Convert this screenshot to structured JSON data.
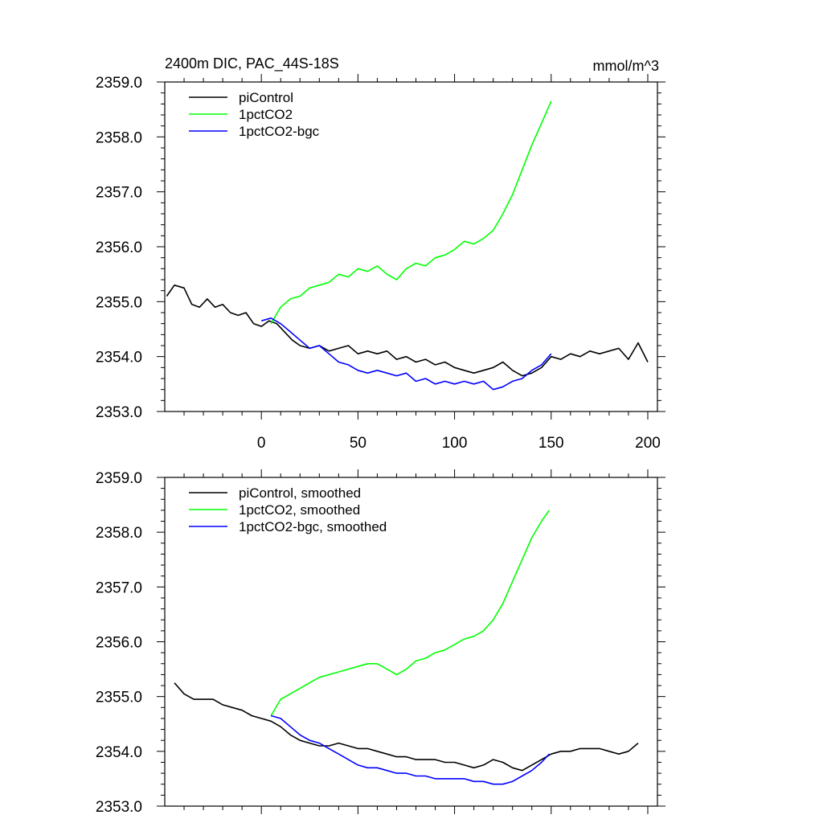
{
  "chart_data": [
    {
      "type": "line",
      "title_left": "2400m DIC, PAC_44S-18S",
      "title_right": "mmol/m^3",
      "xlabel": "",
      "ylabel": "",
      "xlim": [
        -50,
        205
      ],
      "ylim": [
        2353.0,
        2359.0
      ],
      "xticks": [
        0,
        50,
        100,
        150,
        200
      ],
      "xtick_labels": [
        "0",
        "50",
        "100",
        "150",
        "200"
      ],
      "yticks": [
        2353.0,
        2354.0,
        2355.0,
        2356.0,
        2357.0,
        2358.0,
        2359.0
      ],
      "ytick_labels": [
        "2353.0",
        "2354.0",
        "2355.0",
        "2356.0",
        "2357.0",
        "2358.0",
        "2359.0"
      ],
      "show_xtick_labels": true,
      "legend": "top-left",
      "series": [
        {
          "name": "piControl",
          "color": "#000000",
          "x": [
            -49,
            -45,
            -40,
            -36,
            -32,
            -28,
            -24,
            -20,
            -16,
            -12,
            -8,
            -4,
            0,
            4,
            8,
            12,
            16,
            20,
            25,
            30,
            35,
            40,
            45,
            50,
            55,
            60,
            65,
            70,
            75,
            80,
            85,
            90,
            95,
            100,
            105,
            110,
            115,
            120,
            125,
            130,
            135,
            140,
            145,
            150,
            155,
            160,
            165,
            170,
            175,
            180,
            185,
            190,
            195,
            200
          ],
          "values": [
            2355.1,
            2355.3,
            2355.25,
            2354.95,
            2354.9,
            2355.05,
            2354.9,
            2354.95,
            2354.8,
            2354.75,
            2354.8,
            2354.6,
            2354.55,
            2354.65,
            2354.6,
            2354.45,
            2354.3,
            2354.2,
            2354.15,
            2354.2,
            2354.1,
            2354.15,
            2354.2,
            2354.05,
            2354.1,
            2354.05,
            2354.1,
            2353.95,
            2354.0,
            2353.9,
            2353.95,
            2353.85,
            2353.9,
            2353.8,
            2353.75,
            2353.7,
            2353.75,
            2353.8,
            2353.9,
            2353.75,
            2353.65,
            2353.7,
            2353.8,
            2354.0,
            2353.95,
            2354.05,
            2354.0,
            2354.1,
            2354.05,
            2354.1,
            2354.15,
            2353.95,
            2354.25,
            2353.9
          ]
        },
        {
          "name": "1pctCO2",
          "color": "#00ff00",
          "x": [
            5,
            10,
            15,
            20,
            25,
            30,
            35,
            40,
            45,
            50,
            55,
            60,
            65,
            70,
            75,
            80,
            85,
            90,
            95,
            100,
            105,
            110,
            115,
            120,
            125,
            130,
            135,
            140,
            145,
            150
          ],
          "values": [
            2354.6,
            2354.9,
            2355.05,
            2355.1,
            2355.25,
            2355.3,
            2355.35,
            2355.5,
            2355.45,
            2355.6,
            2355.55,
            2355.65,
            2355.5,
            2355.4,
            2355.6,
            2355.7,
            2355.65,
            2355.8,
            2355.85,
            2355.95,
            2356.1,
            2356.05,
            2356.15,
            2356.3,
            2356.6,
            2356.95,
            2357.4,
            2357.85,
            2358.25,
            2358.65
          ]
        },
        {
          "name": "1pctCO2-bgc",
          "color": "#0000ff",
          "x": [
            0,
            5,
            10,
            15,
            20,
            25,
            30,
            35,
            40,
            45,
            50,
            55,
            60,
            65,
            70,
            75,
            80,
            85,
            90,
            95,
            100,
            105,
            110,
            115,
            120,
            125,
            130,
            135,
            140,
            145,
            150
          ],
          "values": [
            2354.65,
            2354.7,
            2354.6,
            2354.45,
            2354.3,
            2354.15,
            2354.2,
            2354.05,
            2353.9,
            2353.85,
            2353.75,
            2353.7,
            2353.75,
            2353.7,
            2353.65,
            2353.7,
            2353.55,
            2353.6,
            2353.5,
            2353.55,
            2353.5,
            2353.55,
            2353.5,
            2353.55,
            2353.4,
            2353.45,
            2353.55,
            2353.6,
            2353.75,
            2353.85,
            2354.05
          ]
        }
      ]
    },
    {
      "type": "line",
      "title_left": "",
      "title_right": "",
      "xlabel": "",
      "ylabel": "",
      "xlim": [
        -50,
        205
      ],
      "ylim": [
        2353.0,
        2359.0
      ],
      "xticks": [
        0,
        50,
        100,
        150,
        200
      ],
      "xtick_labels": [],
      "yticks": [
        2353.0,
        2354.0,
        2355.0,
        2356.0,
        2357.0,
        2358.0,
        2359.0
      ],
      "ytick_labels": [
        "2353.0",
        "2354.0",
        "2355.0",
        "2356.0",
        "2357.0",
        "2358.0",
        "2359.0"
      ],
      "show_xtick_labels": false,
      "legend": "top-left",
      "series": [
        {
          "name": "piControl, smoothed",
          "color": "#000000",
          "x": [
            -45,
            -40,
            -35,
            -30,
            -25,
            -20,
            -15,
            -10,
            -5,
            0,
            5,
            10,
            15,
            20,
            25,
            30,
            35,
            40,
            45,
            50,
            55,
            60,
            65,
            70,
            75,
            80,
            85,
            90,
            95,
            100,
            105,
            110,
            115,
            120,
            125,
            130,
            135,
            140,
            145,
            150,
            155,
            160,
            165,
            170,
            175,
            180,
            185,
            190,
            195
          ],
          "values": [
            2355.25,
            2355.05,
            2354.95,
            2354.95,
            2354.95,
            2354.85,
            2354.8,
            2354.75,
            2354.65,
            2354.6,
            2354.55,
            2354.45,
            2354.3,
            2354.2,
            2354.15,
            2354.1,
            2354.1,
            2354.15,
            2354.1,
            2354.05,
            2354.05,
            2354.0,
            2353.95,
            2353.9,
            2353.9,
            2353.85,
            2353.85,
            2353.85,
            2353.8,
            2353.8,
            2353.75,
            2353.7,
            2353.75,
            2353.85,
            2353.8,
            2353.7,
            2353.65,
            2353.75,
            2353.85,
            2353.95,
            2354.0,
            2354.0,
            2354.05,
            2354.05,
            2354.05,
            2354.0,
            2353.95,
            2354.0,
            2354.15
          ]
        },
        {
          "name": "1pctCO2, smoothed",
          "color": "#00ff00",
          "x": [
            5,
            10,
            15,
            20,
            25,
            30,
            35,
            40,
            45,
            50,
            55,
            60,
            65,
            70,
            75,
            80,
            85,
            90,
            95,
            100,
            105,
            110,
            115,
            120,
            125,
            130,
            135,
            140,
            145,
            149
          ],
          "values": [
            2354.65,
            2354.95,
            2355.05,
            2355.15,
            2355.25,
            2355.35,
            2355.4,
            2355.45,
            2355.5,
            2355.55,
            2355.6,
            2355.6,
            2355.5,
            2355.4,
            2355.5,
            2355.65,
            2355.7,
            2355.8,
            2355.85,
            2355.95,
            2356.05,
            2356.1,
            2356.2,
            2356.4,
            2356.7,
            2357.1,
            2357.5,
            2357.9,
            2358.2,
            2358.4
          ]
        },
        {
          "name": "1pctCO2-bgc, smoothed",
          "color": "#0000ff",
          "x": [
            5,
            10,
            15,
            20,
            25,
            30,
            35,
            40,
            45,
            50,
            55,
            60,
            65,
            70,
            75,
            80,
            85,
            90,
            95,
            100,
            105,
            110,
            115,
            120,
            125,
            130,
            135,
            140,
            145,
            149
          ],
          "values": [
            2354.65,
            2354.6,
            2354.45,
            2354.3,
            2354.2,
            2354.15,
            2354.05,
            2353.95,
            2353.85,
            2353.75,
            2353.7,
            2353.7,
            2353.65,
            2353.6,
            2353.6,
            2353.55,
            2353.55,
            2353.5,
            2353.5,
            2353.5,
            2353.5,
            2353.45,
            2353.45,
            2353.4,
            2353.4,
            2353.45,
            2353.55,
            2353.65,
            2353.8,
            2353.95
          ]
        }
      ]
    }
  ]
}
